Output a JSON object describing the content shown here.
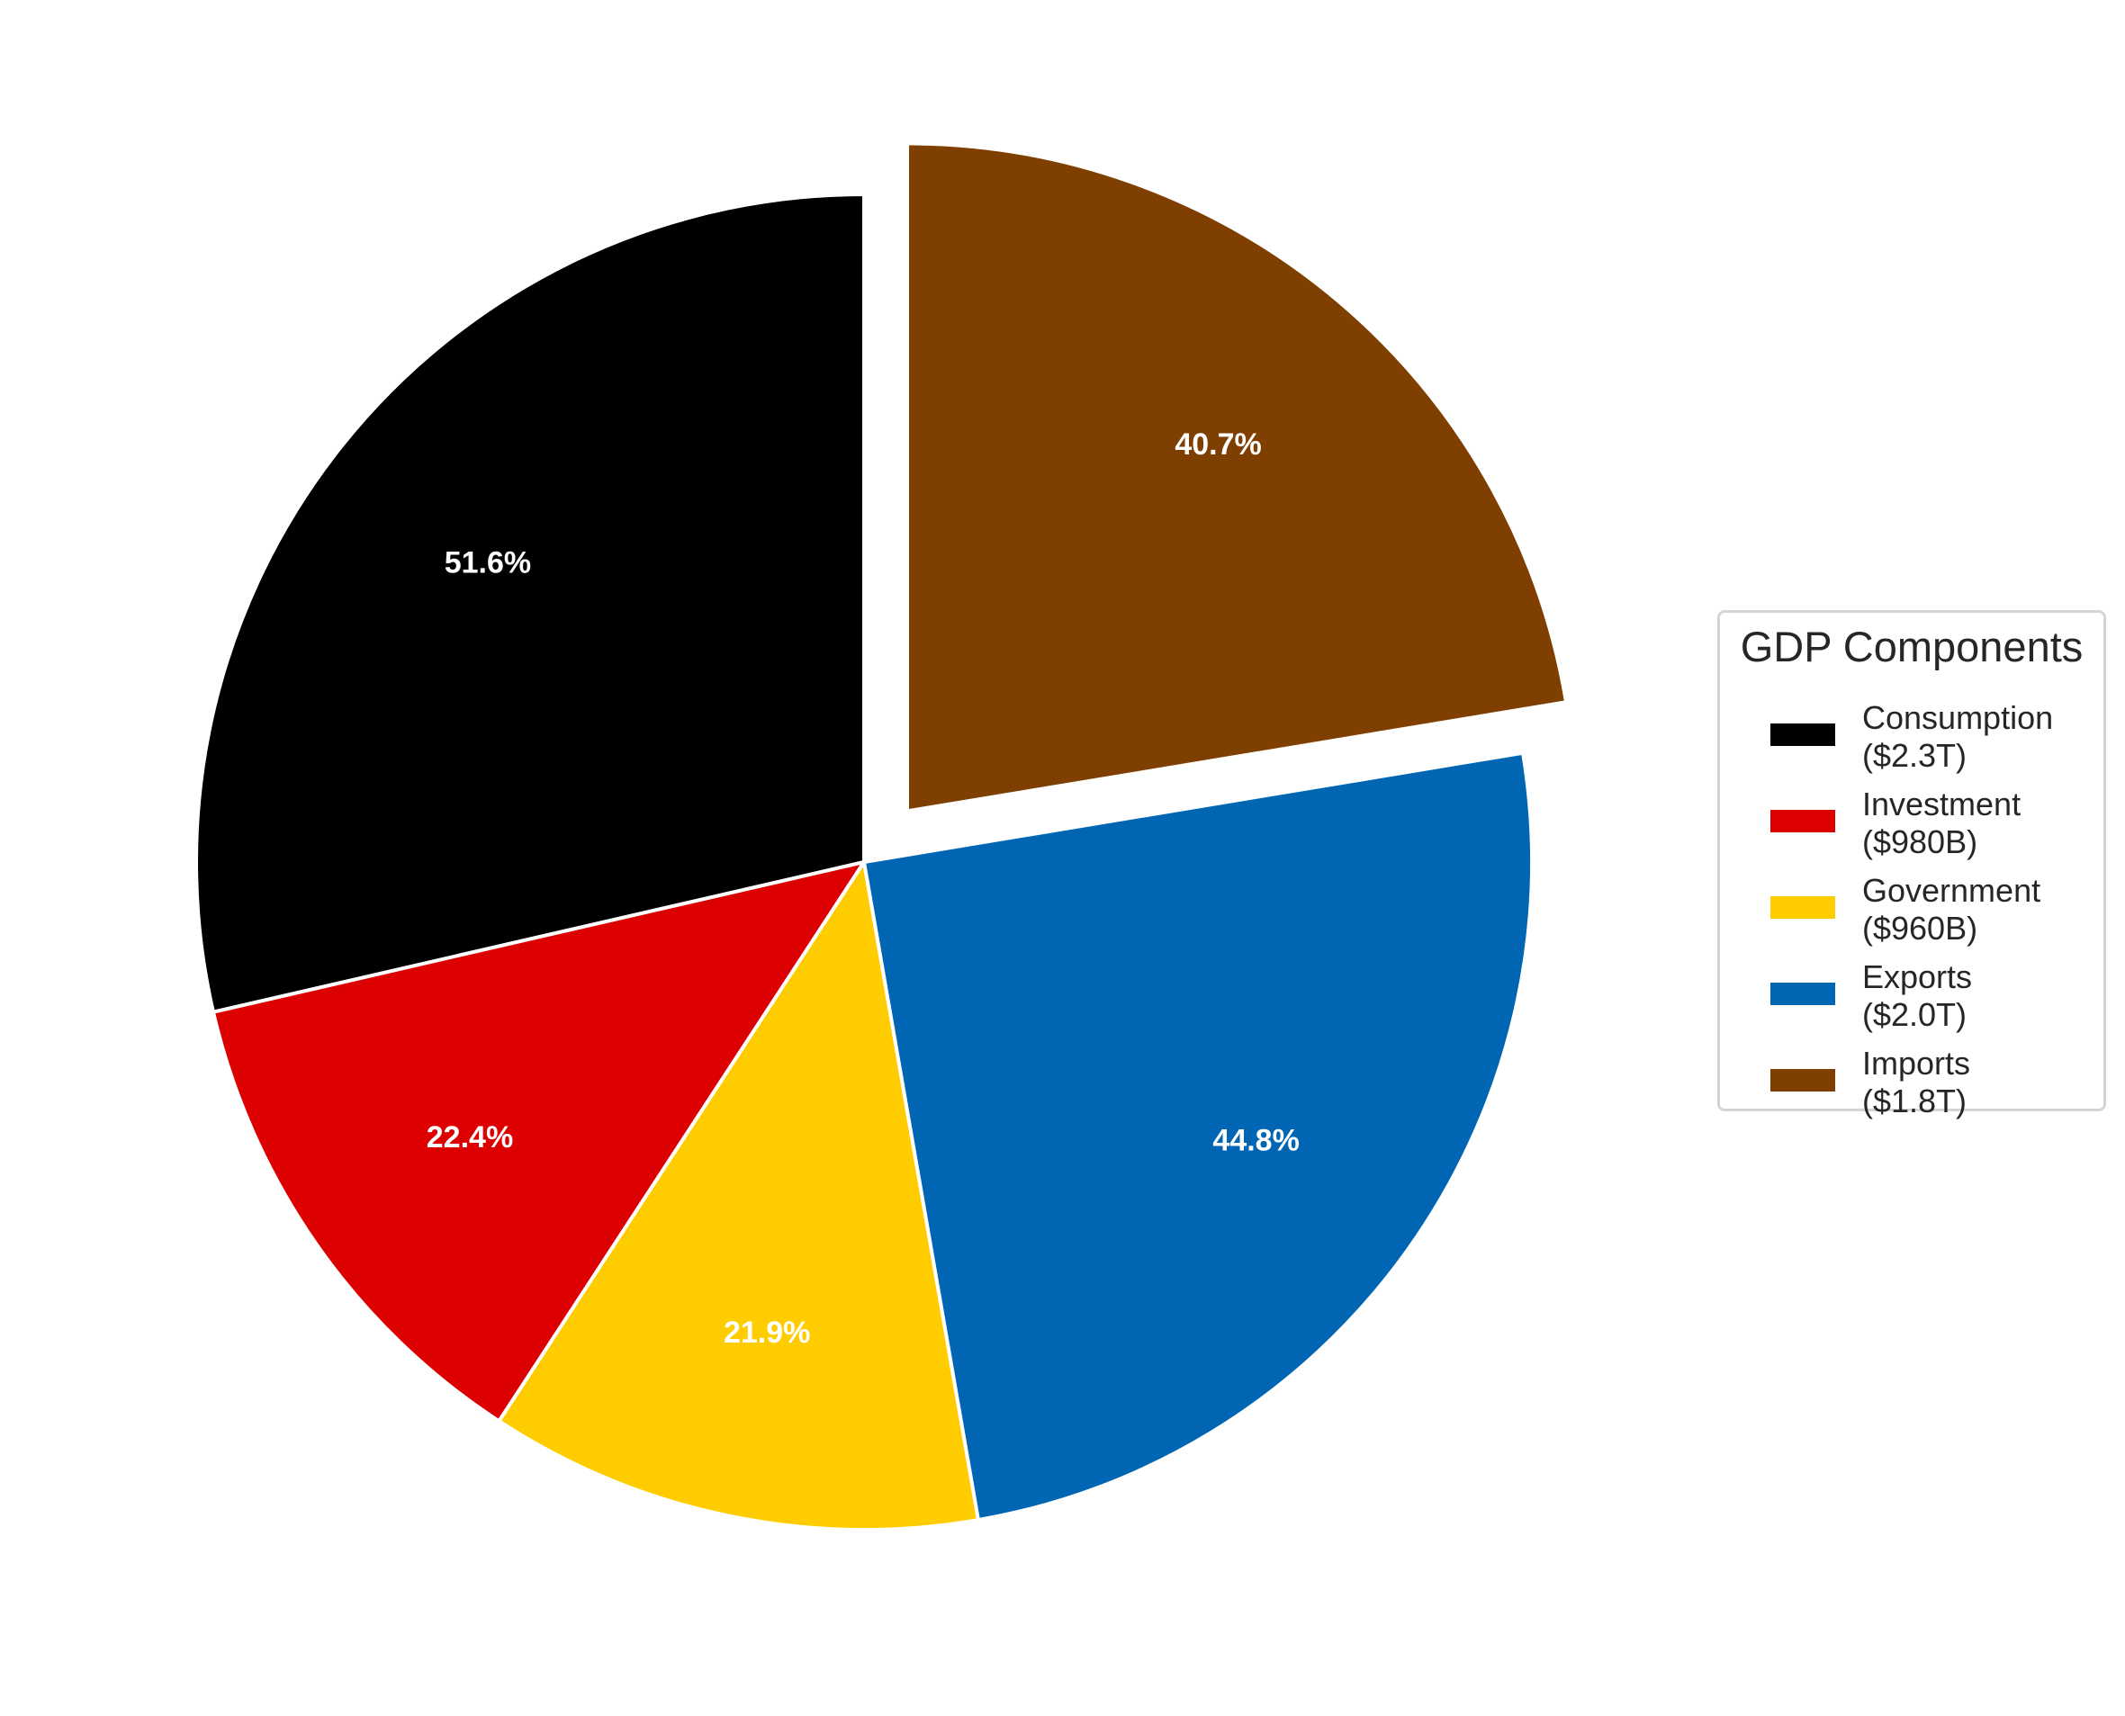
{
  "chart_data": {
    "type": "pie",
    "legend": {
      "title": "GDP Components",
      "placement": "right"
    },
    "slices": [
      {
        "category": "Consumption",
        "amount_label": "($2.3T)",
        "percent_label": "51.6%",
        "value": 2300,
        "color": "#000000",
        "exploded": false
      },
      {
        "category": "Investment",
        "amount_label": "($980B)",
        "percent_label": "22.4%",
        "value": 980,
        "color": "#dd0000",
        "exploded": false
      },
      {
        "category": "Government",
        "amount_label": "($960B)",
        "percent_label": "21.9%",
        "value": 960,
        "color": "#ffcc00",
        "exploded": false
      },
      {
        "category": "Exports",
        "amount_label": "($2.0T)",
        "percent_label": "44.8%",
        "value": 2000,
        "color": "#0066b3",
        "exploded": false
      },
      {
        "category": "Imports",
        "amount_label": "($1.8T)",
        "percent_label": "40.7%",
        "value": 1800,
        "color": "#7f3f00",
        "exploded": true
      }
    ],
    "start_angle_deg": 90,
    "direction": "counterclockwise"
  }
}
